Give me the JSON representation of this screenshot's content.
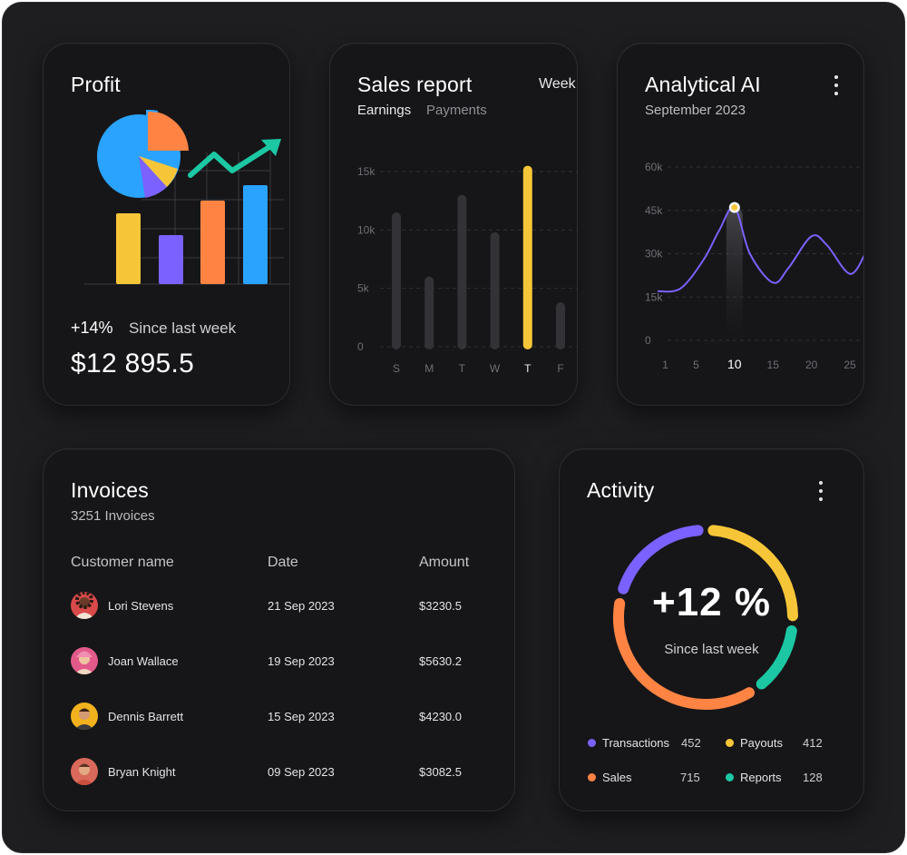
{
  "profit": {
    "title": "Profit",
    "change": "+14%",
    "change_label": "Since last week",
    "amount": "$12 895.5"
  },
  "sales": {
    "title": "Sales report",
    "period": "Week",
    "tabs": [
      "Earnings",
      "Payments"
    ],
    "active_tab": "Earnings",
    "highlight_color": "#f7c638",
    "bar_color": "#333337"
  },
  "analytical": {
    "title": "Analytical AI",
    "subtitle": "September 2023",
    "line_color": "#7b61ff",
    "marker_color": "#f7c638"
  },
  "invoices": {
    "title": "Invoices",
    "subtitle": "3251 Invoices",
    "columns": [
      "Customer name",
      "Date",
      "Amount"
    ],
    "rows": [
      {
        "name": "Lori Stevens",
        "date": "21 Sep 2023",
        "amount": "$3230.5",
        "avatar_bg": "#d94a4a"
      },
      {
        "name": "Joan Wallace",
        "date": "19 Sep 2023",
        "amount": "$5630.2",
        "avatar_bg": "#e25a8a"
      },
      {
        "name": "Dennis Barrett",
        "date": "15 Sep 2023",
        "amount": "$4230.0",
        "avatar_bg": "#f2b21d"
      },
      {
        "name": "Bryan Knight",
        "date": "09 Sep 2023",
        "amount": "$3082.5",
        "avatar_bg": "#d9695a"
      }
    ]
  },
  "activity": {
    "title": "Activity",
    "value": "+12 %",
    "label": "Since last week",
    "legend": [
      {
        "name": "Transactions",
        "value": "452",
        "color": "#7b61ff"
      },
      {
        "name": "Payouts",
        "value": "412",
        "color": "#f7c638"
      },
      {
        "name": "Sales",
        "value": "715",
        "color": "#ff8444"
      },
      {
        "name": "Reports",
        "value": "128",
        "color": "#1cc8a4"
      }
    ]
  },
  "chart_data": [
    {
      "type": "bar",
      "title": "Sales report",
      "categories": [
        "S",
        "M",
        "T",
        "W",
        "T",
        "F"
      ],
      "values": [
        11.5,
        6,
        13,
        9.8,
        15.5,
        3.8
      ],
      "highlight_index": 4,
      "y_ticks": [
        "0",
        "5k",
        "10k",
        "15k"
      ],
      "ylim": [
        0,
        15
      ],
      "grid": true
    },
    {
      "type": "line",
      "title": "Analytical AI",
      "x": [
        0,
        3,
        6,
        8,
        10,
        12,
        15,
        17,
        20,
        22,
        25,
        27
      ],
      "y": [
        17,
        18,
        28,
        38,
        46,
        30,
        20,
        25,
        36,
        33,
        23,
        30
      ],
      "x_ticks": [
        "1",
        "5",
        "10",
        "15",
        "20",
        "25"
      ],
      "highlight_x": "10",
      "y_ticks": [
        "0",
        "15k",
        "30k",
        "45k",
        "60k"
      ],
      "ylim": [
        0,
        60
      ],
      "grid": true
    },
    {
      "type": "pie",
      "title": "Activity",
      "labels": [
        "Transactions",
        "Payouts",
        "Sales",
        "Reports"
      ],
      "values": [
        452,
        412,
        715,
        128
      ]
    }
  ]
}
